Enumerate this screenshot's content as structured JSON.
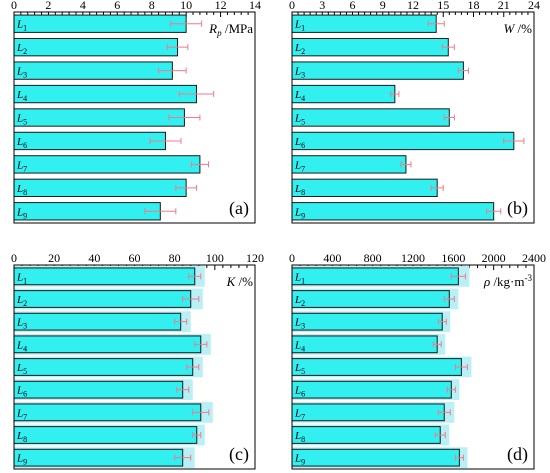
{
  "chart_data": [
    {
      "type": "bar",
      "orientation": "horizontal",
      "panel": "(a)",
      "axis_label": {
        "symbol": "R",
        "subscript": "p",
        "unit": "/MPa"
      },
      "xlim": [
        0,
        14
      ],
      "ticks": [
        0,
        2,
        4,
        6,
        8,
        10,
        12,
        14
      ],
      "categories": [
        "L1",
        "L2",
        "L3",
        "L4",
        "L5",
        "L6",
        "L7",
        "L8",
        "L9"
      ],
      "values": [
        10.0,
        9.5,
        9.2,
        10.6,
        9.9,
        8.8,
        10.8,
        10.0,
        8.5
      ],
      "errors": [
        0.9,
        0.6,
        0.8,
        1.0,
        0.9,
        0.9,
        0.5,
        0.6,
        0.9
      ]
    },
    {
      "type": "bar",
      "orientation": "horizontal",
      "panel": "(b)",
      "axis_label": {
        "symbol": "W",
        "subscript": "",
        "unit": "/%"
      },
      "xlim": [
        0,
        24
      ],
      "ticks": [
        0,
        3,
        6,
        9,
        12,
        15,
        18,
        21,
        24
      ],
      "categories": [
        "L1",
        "L2",
        "L3",
        "L4",
        "L5",
        "L6",
        "L7",
        "L8",
        "L9"
      ],
      "values": [
        14.3,
        15.5,
        17.0,
        10.2,
        15.6,
        22.0,
        11.3,
        14.4,
        20.0
      ],
      "errors": [
        0.8,
        0.6,
        0.5,
        0.4,
        0.5,
        1.0,
        0.5,
        0.6,
        0.7
      ]
    },
    {
      "type": "bar",
      "orientation": "horizontal",
      "panel": "(c)",
      "axis_label": {
        "symbol": "K",
        "subscript": "",
        "unit": "/%"
      },
      "xlim": [
        0,
        120
      ],
      "ticks": [
        0,
        20,
        40,
        60,
        80,
        100,
        120
      ],
      "categories": [
        "L1",
        "L2",
        "L3",
        "L4",
        "L5",
        "L6",
        "L7",
        "L8",
        "L9"
      ],
      "values": [
        90,
        88,
        83,
        93,
        89,
        84,
        93,
        91,
        84
      ],
      "errors": [
        3,
        4,
        3,
        3,
        3,
        3,
        4,
        2,
        4
      ]
    },
    {
      "type": "bar",
      "orientation": "horizontal",
      "panel": "(d)",
      "axis_label": {
        "symbol": "ρ",
        "subscript": "",
        "unit": "/kg·m",
        "superscript": "-3"
      },
      "xlim": [
        0,
        2400
      ],
      "ticks": [
        0,
        400,
        800,
        1200,
        1600,
        2000,
        2400
      ],
      "categories": [
        "L1",
        "L2",
        "L3",
        "L4",
        "L5",
        "L6",
        "L7",
        "L8",
        "L9"
      ],
      "values": [
        1650,
        1560,
        1490,
        1440,
        1680,
        1580,
        1510,
        1470,
        1660
      ],
      "errors": [
        70,
        50,
        40,
        40,
        60,
        40,
        60,
        50,
        40
      ]
    }
  ],
  "colors": {
    "bar_fill": "#33f0f0",
    "bar_edge": "#1a1a1a",
    "error_bar": "#f07a8c",
    "highlight": "#b8f0f5"
  }
}
